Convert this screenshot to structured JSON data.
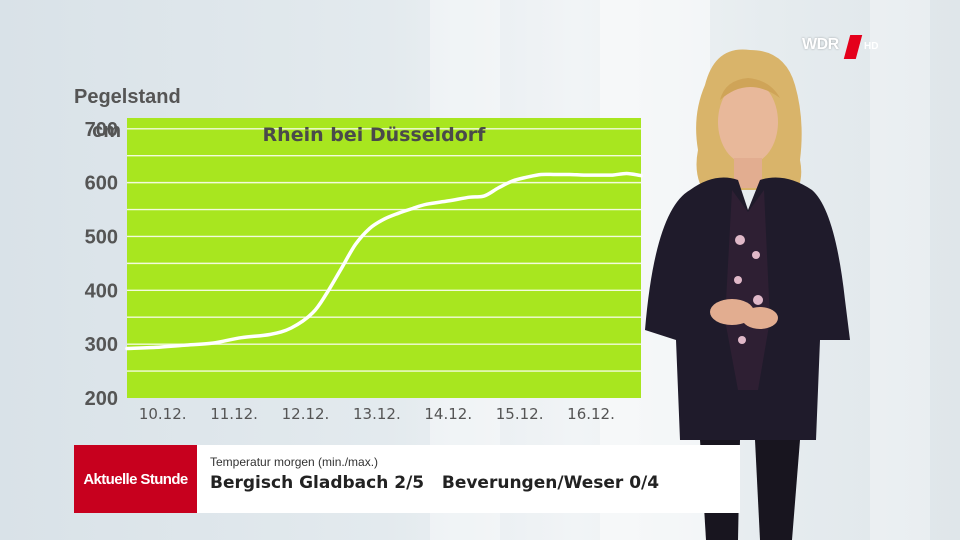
{
  "logo": {
    "text": "WDR",
    "suffix": "HD"
  },
  "chart_data": {
    "type": "line",
    "title": "Rhein bei Düsseldorf",
    "axis_title": "Pegelstand",
    "ylabel": "cm",
    "ylim": [
      200,
      720
    ],
    "yticks": [
      200,
      300,
      400,
      500,
      600,
      700
    ],
    "xlim": [
      0,
      7.2
    ],
    "xticks": [
      {
        "x": 0.5,
        "label": "10.12."
      },
      {
        "x": 1.5,
        "label": "11.12."
      },
      {
        "x": 2.5,
        "label": "12.12."
      },
      {
        "x": 3.5,
        "label": "13.12."
      },
      {
        "x": 4.5,
        "label": "14.12."
      },
      {
        "x": 5.5,
        "label": "15.12."
      },
      {
        "x": 6.5,
        "label": "16.12."
      }
    ],
    "grid": true,
    "background_color": "#a8e61f",
    "line_color": "#ffffff",
    "series": [
      {
        "x": [
          0,
          0.4,
          0.8,
          1.2,
          1.6,
          2.0,
          2.3,
          2.6,
          2.8,
          3.0,
          3.2,
          3.4,
          3.6,
          3.8,
          4.0,
          4.2,
          4.5,
          4.8,
          5.0,
          5.2,
          5.4,
          5.6,
          5.8,
          6.0,
          6.2,
          6.4,
          6.6,
          6.8,
          7.0,
          7.2
        ],
        "y": [
          292,
          294,
          298,
          302,
          312,
          318,
          330,
          358,
          395,
          440,
          485,
          515,
          532,
          543,
          552,
          560,
          566,
          573,
          575,
          590,
          603,
          610,
          615,
          615,
          615,
          614,
          614,
          614,
          617,
          613
        ]
      }
    ]
  },
  "lower_third": {
    "brand": "Aktuelle Stunde",
    "subtitle": "Temperatur morgen (min./max.)",
    "main": "Bergisch Gladbach 2/5   Beverungen/Weser 0/4"
  }
}
